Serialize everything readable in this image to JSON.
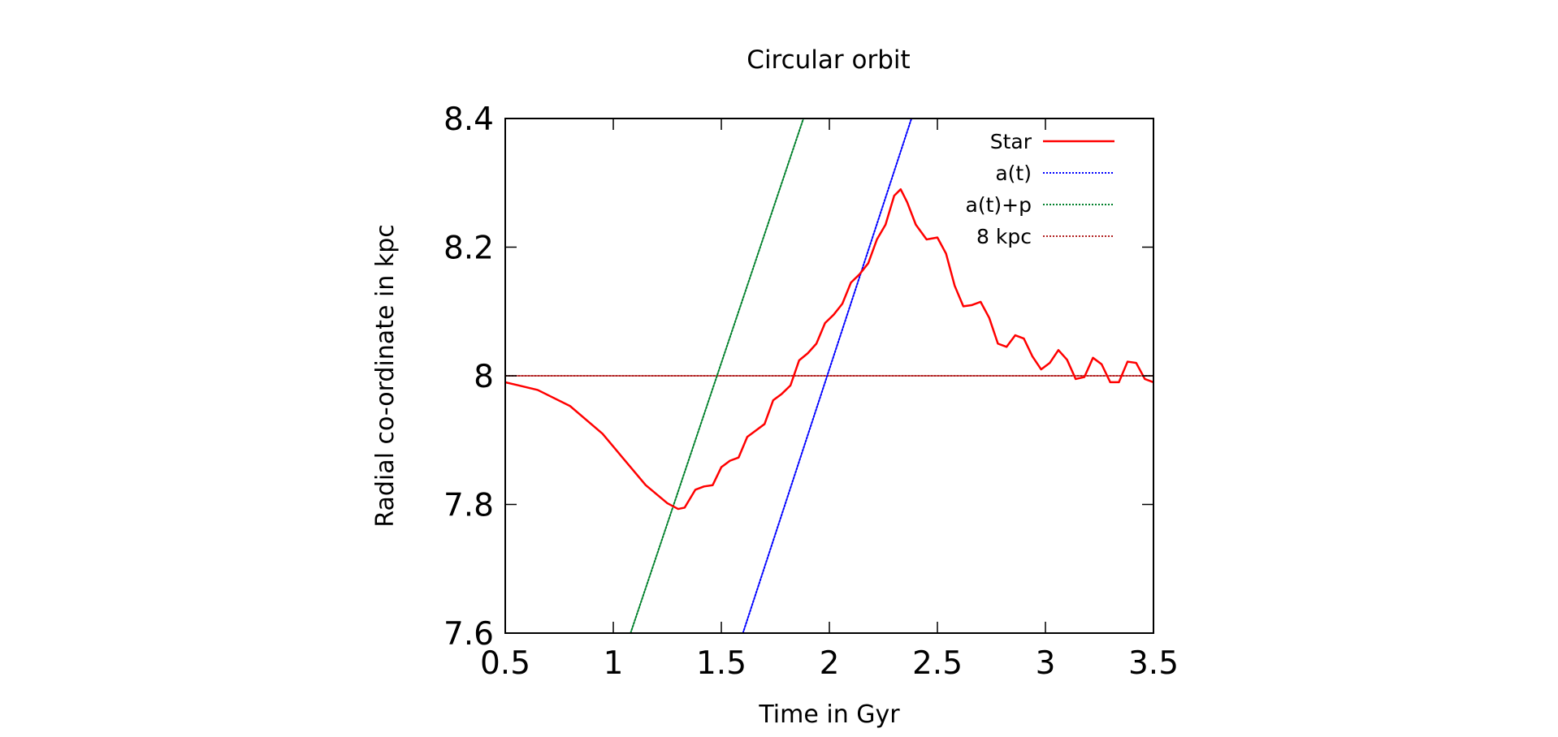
{
  "chart_data": {
    "type": "line",
    "title": "Circular orbit",
    "xlabel": "Time in Gyr",
    "ylabel": "Radial co-ordinate in kpc",
    "xlim": [
      0.5,
      3.5
    ],
    "ylim": [
      7.6,
      8.4
    ],
    "xticks": [
      0.5,
      1,
      1.5,
      2,
      2.5,
      3,
      3.5
    ],
    "xtick_labels": [
      "0.5",
      "1",
      "1.5",
      "2",
      "2.5",
      "3",
      "3.5"
    ],
    "yticks": [
      7.6,
      7.8,
      8.0,
      8.2,
      8.4
    ],
    "ytick_labels": [
      "7.6",
      "7.8",
      "8",
      "8.2",
      "8.4"
    ],
    "grid": false,
    "legend_position": "top-right",
    "series": [
      {
        "name": "Star",
        "color": "#ff0000",
        "style": "solid",
        "x": [
          0.5,
          0.65,
          0.8,
          0.95,
          1.05,
          1.15,
          1.25,
          1.3,
          1.33,
          1.38,
          1.42,
          1.46,
          1.5,
          1.54,
          1.58,
          1.62,
          1.66,
          1.7,
          1.74,
          1.78,
          1.82,
          1.86,
          1.9,
          1.94,
          1.98,
          2.02,
          2.06,
          2.1,
          2.14,
          2.18,
          2.22,
          2.26,
          2.3,
          2.33,
          2.36,
          2.4,
          2.45,
          2.5,
          2.54,
          2.58,
          2.62,
          2.66,
          2.7,
          2.74,
          2.78,
          2.82,
          2.86,
          2.9,
          2.94,
          2.98,
          3.02,
          3.06,
          3.1,
          3.14,
          3.18,
          3.22,
          3.26,
          3.3,
          3.34,
          3.38,
          3.42,
          3.46,
          3.5
        ],
        "values": [
          7.99,
          7.978,
          7.953,
          7.91,
          7.87,
          7.83,
          7.802,
          7.793,
          7.795,
          7.823,
          7.828,
          7.83,
          7.858,
          7.868,
          7.873,
          7.905,
          7.915,
          7.925,
          7.962,
          7.972,
          7.985,
          8.024,
          8.035,
          8.05,
          8.082,
          8.095,
          8.112,
          8.145,
          8.158,
          8.175,
          8.212,
          8.235,
          8.28,
          8.29,
          8.27,
          8.235,
          8.212,
          8.215,
          8.19,
          8.14,
          8.108,
          8.11,
          8.115,
          8.09,
          8.05,
          8.045,
          8.063,
          8.058,
          8.03,
          8.01,
          8.02,
          8.04,
          8.025,
          7.995,
          7.998,
          8.028,
          8.018,
          7.99,
          7.99,
          8.022,
          8.02,
          7.995,
          7.99
        ]
      },
      {
        "name": "a(t)",
        "color": "#0000ff",
        "style": "dotted",
        "x": [
          1.6,
          2.38
        ],
        "values": [
          7.6,
          8.4
        ]
      },
      {
        "name": "a(t)+p",
        "color": "#00802b",
        "style": "dotted",
        "x": [
          1.08,
          1.88
        ],
        "values": [
          7.6,
          8.4
        ]
      },
      {
        "name": "8 kpc",
        "color": "#b22222",
        "style": "dotted",
        "x": [
          0.5,
          3.5
        ],
        "values": [
          8.0,
          8.0
        ]
      }
    ]
  }
}
